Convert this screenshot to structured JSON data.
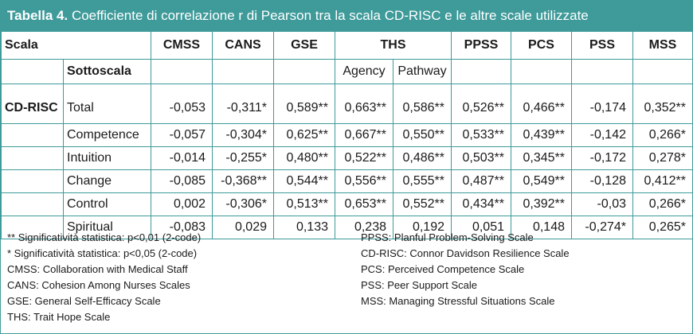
{
  "title": {
    "bold": "Tabella 4.",
    "rest": " Coefficiente di correlazione r di Pearson tra la scala CD-RISC e le altre scale utilizzate"
  },
  "header": {
    "scala": "Scala",
    "cmss": "CMSS",
    "cans": "CANS",
    "gse": "GSE",
    "ths": "THS",
    "ppss": "PPSS",
    "pcs": "PCS",
    "pss": "PSS",
    "mss": "MSS"
  },
  "subheader": {
    "sottoscala": "Sottoscala",
    "agency": "Agency",
    "pathway": "Pathway"
  },
  "rowgroup": "CD-RISC",
  "rows": [
    {
      "label": "Total",
      "cells": [
        "-0,053",
        "-0,311*",
        "0,589**",
        "0,663**",
        "0,586**",
        "0,526**",
        "0,466**",
        "-0,174",
        "0,352**"
      ]
    },
    {
      "label": "Competence",
      "cells": [
        "-0,057",
        "-0,304*",
        "0,625**",
        "0,667**",
        "0,550**",
        "0,533**",
        "0,439**",
        "-0,142",
        "0,266*"
      ]
    },
    {
      "label": "Intuition",
      "cells": [
        "-0,014",
        "-0,255*",
        "0,480**",
        "0,522**",
        "0,486**",
        "0,503**",
        "0,345**",
        "-0,172",
        "0,278*"
      ]
    },
    {
      "label": "Change",
      "cells": [
        "-0,085",
        "-0,368**",
        "0,544**",
        "0,556**",
        "0,555**",
        "0,487**",
        "0,549**",
        "-0,128",
        "0,412**"
      ]
    },
    {
      "label": "Control",
      "cells": [
        "0,002",
        "-0,306*",
        "0,513**",
        "0,653**",
        "0,552**",
        "0,434**",
        "0,392**",
        "-0,03",
        "0,266*"
      ]
    },
    {
      "label": "Spiritual",
      "cells": [
        "-0,083",
        "0,029",
        "0,133",
        "0,238",
        "0,192",
        "0,051",
        "0,148",
        "-0,274*",
        "0,265*"
      ]
    }
  ],
  "notes_left": [
    "** Significatività statistica: p<0,01 (2-code)",
    "* Significatività statistica: p<0,05 (2-code)",
    "CMSS: Collaboration with Medical Staff",
    "CANS: Cohesion Among Nurses Scales",
    "GSE: General Self-Efficacy Scale",
    "THS: Trait Hope Scale"
  ],
  "notes_right": [
    "PPSS: Planful Problem-Solving Scale",
    "CD-RISC: Connor Davidson Resilience Scale",
    "PCS: Perceived Competence Scale",
    "PSS: Peer Support Scale",
    "MSS: Managing Stressful Situations Scale"
  ]
}
